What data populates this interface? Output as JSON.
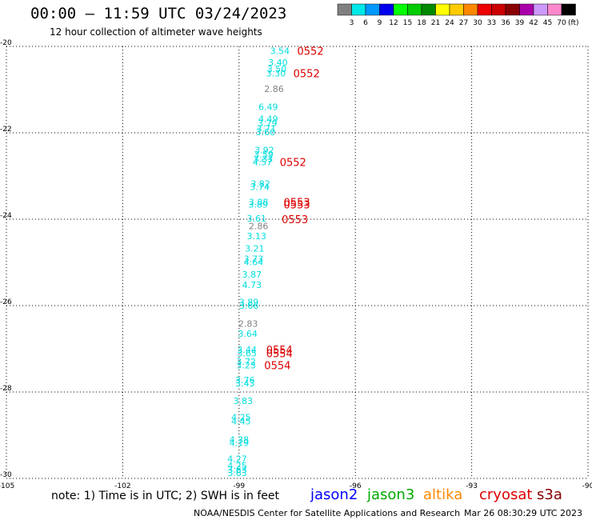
{
  "header": {
    "title": "00:00 – 11:59 UTC 03/24/2023",
    "subtitle": "12 hour collection of altimeter wave heights"
  },
  "colorbar": {
    "colors": [
      "#808080",
      "#00e8e8",
      "#0099ff",
      "#0000ee",
      "#00ff00",
      "#00cc00",
      "#008800",
      "#ffff00",
      "#ffcc00",
      "#ff8800",
      "#ee0000",
      "#cc0000",
      "#880000",
      "#aa00aa",
      "#cc99ff",
      "#ff88cc",
      "#000000"
    ],
    "labels": [
      "3",
      "6",
      "9",
      "12",
      "15",
      "18",
      "21",
      "24",
      "27",
      "30",
      "33",
      "36",
      "39",
      "42",
      "45",
      "70"
    ],
    "unit": "(ft)"
  },
  "footer": {
    "note": "note: 1) Time is in UTC; 2) SWH is in feet",
    "satellites": [
      {
        "name": "jason2",
        "color": "#0000ff"
      },
      {
        "name": "jason3",
        "color": "#00aa00"
      },
      {
        "name": "altika",
        "color": "#ff8800"
      },
      {
        "name": "cryosat",
        "color": "#dd0000"
      },
      {
        "name": "s3a",
        "color": "#880000"
      }
    ],
    "credit": "NOAA/NESDIS Center for Satellite Applications and Research",
    "timestamp": "Mar 26 08:30:29 UTC 2023"
  },
  "chart_data": {
    "type": "scatter",
    "title": "00:00 – 11:59 UTC 03/24/2023",
    "subtitle": "12 hour collection of altimeter wave heights",
    "xlim": [
      -105,
      -90
    ],
    "ylim": [
      -30,
      -20
    ],
    "xticks": [
      -105,
      -102,
      -99,
      -96,
      -93,
      -90
    ],
    "yticks": [
      -20,
      -22,
      -24,
      -26,
      -28,
      -30
    ],
    "xtick_labels": [
      "-105",
      "-102",
      "-99",
      "-96",
      "-93",
      "-90"
    ],
    "ytick_labels": [
      "-20",
      "-22",
      "-24",
      "-26",
      "-28",
      "-30"
    ],
    "grid": true,
    "swh_points": [
      {
        "lon": -98.2,
        "lat": -20.1,
        "swh": "3.54",
        "color": "#00dddd"
      },
      {
        "lon": -98.25,
        "lat": -20.37,
        "swh": "3.40",
        "color": "#00dddd"
      },
      {
        "lon": -98.28,
        "lat": -20.52,
        "swh": "3.50",
        "color": "#00dddd"
      },
      {
        "lon": -98.3,
        "lat": -20.62,
        "swh": "3.30",
        "color": "#00dddd"
      },
      {
        "lon": -98.35,
        "lat": -20.98,
        "swh": "2.86",
        "color": "#808080"
      },
      {
        "lon": -98.5,
        "lat": -21.4,
        "swh": "6.49",
        "color": "#00dddd"
      },
      {
        "lon": -98.5,
        "lat": -21.68,
        "swh": "4.49",
        "color": "#00dddd"
      },
      {
        "lon": -98.52,
        "lat": -21.78,
        "swh": "3.79",
        "color": "#00dddd"
      },
      {
        "lon": -98.55,
        "lat": -21.9,
        "swh": "3.71",
        "color": "#00dddd"
      },
      {
        "lon": -98.57,
        "lat": -21.98,
        "swh": "3.60",
        "color": "#00dddd"
      },
      {
        "lon": -98.6,
        "lat": -22.4,
        "swh": "3.92",
        "color": "#00dddd"
      },
      {
        "lon": -98.62,
        "lat": -22.5,
        "swh": "3.59",
        "color": "#00dddd"
      },
      {
        "lon": -98.63,
        "lat": -22.6,
        "swh": "3.33",
        "color": "#00dddd"
      },
      {
        "lon": -98.65,
        "lat": -22.68,
        "swh": "4.57",
        "color": "#00dddd"
      },
      {
        "lon": -98.7,
        "lat": -23.18,
        "swh": "3.82",
        "color": "#00dddd"
      },
      {
        "lon": -98.72,
        "lat": -23.25,
        "swh": "3.74",
        "color": "#00dddd"
      },
      {
        "lon": -98.75,
        "lat": -23.6,
        "swh": "3.88",
        "color": "#00dddd"
      },
      {
        "lon": -98.76,
        "lat": -23.66,
        "swh": "3.89",
        "color": "#00dddd"
      },
      {
        "lon": -98.8,
        "lat": -23.98,
        "swh": "3.61",
        "color": "#00dddd"
      },
      {
        "lon": -98.75,
        "lat": -24.16,
        "swh": "2.86",
        "color": "#808080"
      },
      {
        "lon": -98.8,
        "lat": -24.39,
        "swh": "3.13",
        "color": "#00dddd"
      },
      {
        "lon": -98.85,
        "lat": -24.68,
        "swh": "3.21",
        "color": "#00dddd"
      },
      {
        "lon": -98.88,
        "lat": -24.92,
        "swh": "3.73",
        "color": "#00dddd"
      },
      {
        "lon": -98.88,
        "lat": -24.99,
        "swh": "4.64",
        "color": "#00dddd"
      },
      {
        "lon": -98.92,
        "lat": -25.28,
        "swh": "3.87",
        "color": "#00dddd"
      },
      {
        "lon": -98.92,
        "lat": -25.52,
        "swh": "4.73",
        "color": "#00dddd"
      },
      {
        "lon": -99.0,
        "lat": -25.92,
        "swh": "3.89",
        "color": "#00dddd"
      },
      {
        "lon": -99.0,
        "lat": -26.0,
        "swh": "3.66",
        "color": "#00dddd"
      },
      {
        "lon": -99.02,
        "lat": -26.42,
        "swh": "2.83",
        "color": "#808080"
      },
      {
        "lon": -99.03,
        "lat": -26.65,
        "swh": "3.64",
        "color": "#00dddd"
      },
      {
        "lon": -99.05,
        "lat": -27.02,
        "swh": "3.44",
        "color": "#00dddd"
      },
      {
        "lon": -99.05,
        "lat": -27.1,
        "swh": "3.65",
        "color": "#00dddd"
      },
      {
        "lon": -99.07,
        "lat": -27.3,
        "swh": "3.72",
        "color": "#00dddd"
      },
      {
        "lon": -99.07,
        "lat": -27.38,
        "swh": "3.23",
        "color": "#00dddd"
      },
      {
        "lon": -99.1,
        "lat": -27.72,
        "swh": "3.76",
        "color": "#00dddd"
      },
      {
        "lon": -99.1,
        "lat": -27.8,
        "swh": "3.43",
        "color": "#00dddd"
      },
      {
        "lon": -99.15,
        "lat": -28.2,
        "swh": "3.83",
        "color": "#00dddd"
      },
      {
        "lon": -99.2,
        "lat": -28.58,
        "swh": "4.25",
        "color": "#00dddd"
      },
      {
        "lon": -99.2,
        "lat": -28.68,
        "swh": "4.45",
        "color": "#00dddd"
      },
      {
        "lon": -99.25,
        "lat": -29.1,
        "swh": "4.38",
        "color": "#00dddd"
      },
      {
        "lon": -99.25,
        "lat": -29.18,
        "swh": "4.19",
        "color": "#00dddd"
      },
      {
        "lon": -99.3,
        "lat": -29.55,
        "swh": "4.27",
        "color": "#00dddd"
      },
      {
        "lon": -99.3,
        "lat": -29.7,
        "swh": "4.25",
        "color": "#00dddd"
      },
      {
        "lon": -99.3,
        "lat": -29.8,
        "swh": "3.63",
        "color": "#00dddd"
      },
      {
        "lon": -99.3,
        "lat": -29.87,
        "swh": "3.63",
        "color": "#00dddd"
      }
    ],
    "time_labels": [
      {
        "lon": -97.5,
        "lat": -20.1,
        "text": "0552",
        "color": "#dd0000"
      },
      {
        "lon": -97.6,
        "lat": -20.62,
        "text": "0552",
        "color": "#dd0000"
      },
      {
        "lon": -97.95,
        "lat": -22.68,
        "text": "0552",
        "color": "#dd0000"
      },
      {
        "lon": -97.85,
        "lat": -23.6,
        "text": "0553",
        "color": "#dd0000"
      },
      {
        "lon": -97.85,
        "lat": -23.66,
        "text": "0553",
        "color": "#dd0000"
      },
      {
        "lon": -97.9,
        "lat": -24.0,
        "text": "0553",
        "color": "#dd0000"
      },
      {
        "lon": -98.3,
        "lat": -27.02,
        "text": "0554",
        "color": "#dd0000"
      },
      {
        "lon": -98.3,
        "lat": -27.1,
        "text": "0554",
        "color": "#dd0000"
      },
      {
        "lon": -98.35,
        "lat": -27.38,
        "text": "0554",
        "color": "#dd0000"
      }
    ]
  }
}
